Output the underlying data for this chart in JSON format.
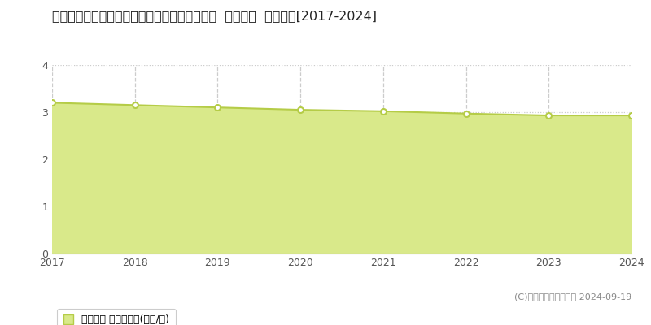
{
  "title": "鳥取県東伯郡北栄町大谷字中向浜２５２番１外  公示地価  地価推移[2017-2024]",
  "years": [
    2017,
    2018,
    2019,
    2020,
    2021,
    2022,
    2023,
    2024
  ],
  "values": [
    3.2,
    3.15,
    3.1,
    3.05,
    3.02,
    2.97,
    2.93,
    2.93
  ],
  "line_color": "#b5cc47",
  "fill_color": "#d9e98a",
  "fill_alpha": 1.0,
  "marker_color": "#ffffff",
  "marker_edge_color": "#b5cc47",
  "ylim": [
    0,
    4
  ],
  "yticks": [
    0,
    1,
    2,
    3,
    4
  ],
  "grid_color": "#cccccc",
  "grid_style": "--",
  "background_color": "#ffffff",
  "legend_label": "公示地価 平均嵪単価(万円/嵪)",
  "copyright_text": "(C)土地価格ドットコム 2024-09-19",
  "title_fontsize": 11.5,
  "tick_fontsize": 9,
  "legend_fontsize": 9,
  "copyright_fontsize": 8
}
